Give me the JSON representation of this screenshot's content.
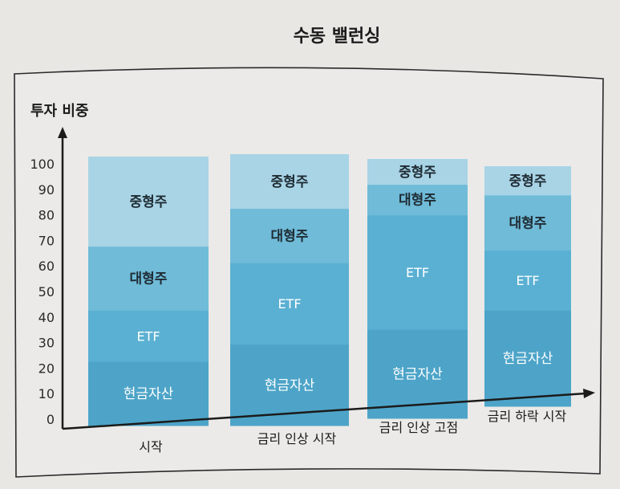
{
  "chart_data": {
    "type": "bar",
    "stacked": true,
    "title": "수동 밸런싱",
    "ylabel": "투자 비중",
    "xlabel": "",
    "ylim": [
      0,
      100
    ],
    "yticks": [
      "0",
      "10",
      "20",
      "30",
      "40",
      "50",
      "60",
      "70",
      "80",
      "90",
      "100"
    ],
    "categories": [
      "시작",
      "금리 인상 시작",
      "금리 인상 고점",
      "금리 하락 시작"
    ],
    "series": [
      {
        "name": "현금자산",
        "values": [
          25,
          30,
          35,
          40
        ],
        "color": "#4da4c8"
      },
      {
        "name": "ETF",
        "values": [
          20,
          30,
          45,
          25
        ],
        "color": "#5ab0d2"
      },
      {
        "name": "대형주",
        "values": [
          25,
          20,
          12,
          23
        ],
        "color": "#6fbbd8"
      },
      {
        "name": "중형주",
        "values": [
          35,
          20,
          10,
          12
        ],
        "color": "#a8d4e6"
      }
    ],
    "label_colors": {
      "현금자산": "#ffffff",
      "ETF": "#ffffff",
      "대형주": "#1f2b33",
      "중형주": "#1f2b33"
    },
    "grid": false,
    "legend": "none"
  }
}
